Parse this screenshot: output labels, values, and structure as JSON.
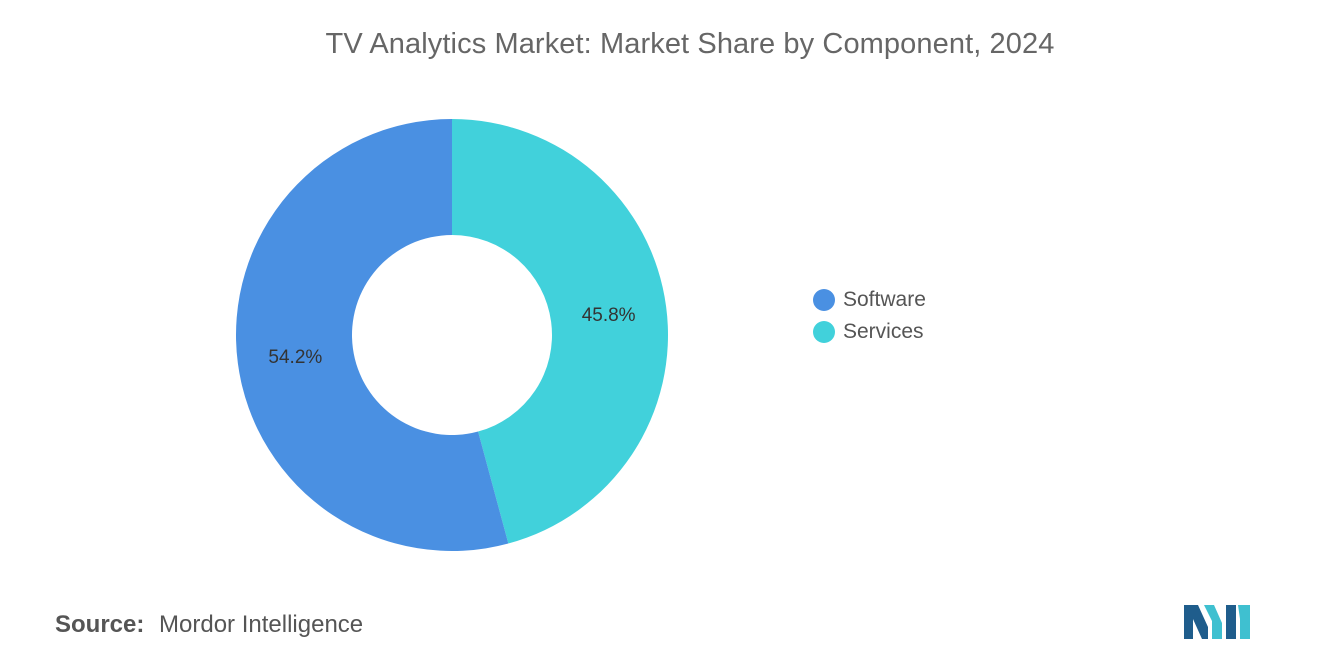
{
  "colors": {
    "software": "#4a90e2",
    "services": "#41d1db",
    "logo_dark": "#1f5d8c",
    "logo_light": "#3fc0d0"
  },
  "chart_data": {
    "type": "pie",
    "title": "TV Analytics Market: Market Share by Component, 2024",
    "donut": true,
    "legend_position": "right",
    "series": [
      {
        "name": "Software",
        "value": 54.2,
        "label": "54.2%",
        "color": "#4a90e2"
      },
      {
        "name": "Services",
        "value": 45.8,
        "label": "45.8%",
        "color": "#41d1db"
      }
    ],
    "legend": [
      "Software",
      "Services"
    ]
  },
  "source": {
    "label": "Source:",
    "text": "Mordor Intelligence"
  },
  "logo": {
    "icon": "mordor-intelligence-logo-icon"
  }
}
